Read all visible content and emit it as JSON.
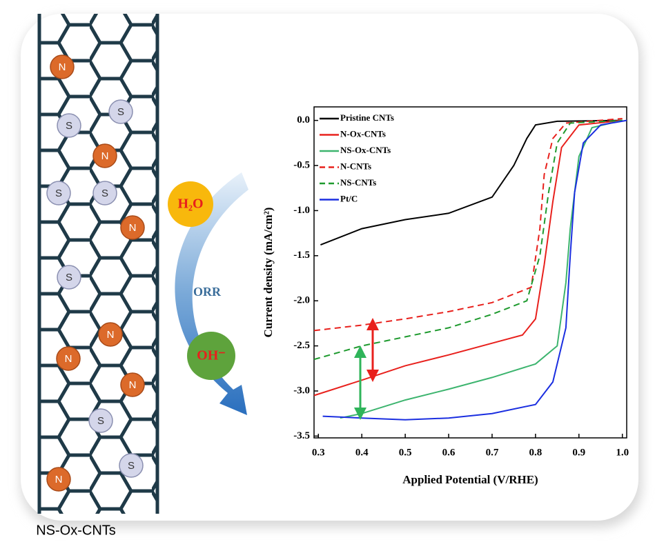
{
  "diagram": {
    "caption": "NS-Ox-CNTs",
    "atoms": [
      "N",
      "S",
      "S",
      "N",
      "S",
      "S",
      "N",
      "S",
      "N",
      "N",
      "N",
      "S",
      "S",
      "N"
    ],
    "reactant": "H₂O",
    "process": "ORR",
    "product": "OH⁻"
  },
  "chart_data": {
    "type": "line",
    "x_label": "Applied Potential (V/RHE)",
    "y_label": "Current density (mA/cm²)",
    "xlim": [
      0.29,
      1.01
    ],
    "ylim": [
      -3.52,
      0.15
    ],
    "xticks": [
      0.3,
      0.4,
      0.5,
      0.6,
      0.7,
      0.8,
      0.9,
      {
        "value": 1,
        "label": "1.0"
      }
    ],
    "yticks": [
      {
        "value": 0,
        "label": "0.0"
      },
      -0.5,
      {
        "value": -1,
        "label": "-1.0"
      },
      -1.5,
      {
        "value": -2,
        "label": "-2.0"
      },
      -2.5,
      {
        "value": -3,
        "label": "-3.0"
      },
      -3.5
    ],
    "legend": "upper left",
    "series": [
      {
        "name": "Pristine CNTs",
        "color": "#000000",
        "dashed": false,
        "x": [
          0.305,
          0.4,
          0.5,
          0.6,
          0.7,
          0.75,
          0.78,
          0.8,
          0.85,
          1.0
        ],
        "values": [
          -1.38,
          -1.2,
          -1.1,
          -1.03,
          -0.85,
          -0.5,
          -0.2,
          -0.05,
          -0.01,
          0
        ]
      },
      {
        "name": "N-Ox-CNTs",
        "color": "#e8201c",
        "dashed": false,
        "x": [
          0.29,
          0.4,
          0.5,
          0.6,
          0.7,
          0.77,
          0.8,
          0.82,
          0.84,
          0.86,
          0.9,
          1.0
        ],
        "values": [
          -3.05,
          -2.88,
          -2.72,
          -2.6,
          -2.47,
          -2.38,
          -2.2,
          -1.6,
          -0.9,
          -0.3,
          -0.05,
          0
        ]
      },
      {
        "name": "NS-Ox-CNTs",
        "color": "#3cb46e",
        "dashed": false,
        "x": [
          0.35,
          0.4,
          0.5,
          0.6,
          0.7,
          0.8,
          0.85,
          0.87,
          0.88,
          0.9,
          0.93,
          1.0
        ],
        "values": [
          -3.3,
          -3.25,
          -3.1,
          -2.98,
          -2.85,
          -2.7,
          -2.5,
          -1.8,
          -1.2,
          -0.4,
          -0.08,
          0
        ]
      },
      {
        "name": "N-CNTs",
        "color": "#e8201c",
        "dashed": true,
        "x": [
          0.29,
          0.4,
          0.5,
          0.6,
          0.7,
          0.79,
          0.81,
          0.82,
          0.84,
          0.87,
          1.0
        ],
        "values": [
          -2.33,
          -2.27,
          -2.2,
          -2.12,
          -2.02,
          -1.85,
          -1.2,
          -0.6,
          -0.2,
          -0.03,
          0.02
        ]
      },
      {
        "name": "NS-CNTs",
        "color": "#1e9a2e",
        "dashed": true,
        "x": [
          0.29,
          0.4,
          0.5,
          0.6,
          0.7,
          0.78,
          0.81,
          0.83,
          0.85,
          0.88,
          1.0
        ],
        "values": [
          -2.65,
          -2.5,
          -2.4,
          -2.3,
          -2.15,
          -2.0,
          -1.5,
          -0.8,
          -0.25,
          -0.03,
          0
        ]
      },
      {
        "name": "Pt/C",
        "color": "#1a2ee0",
        "dashed": false,
        "x": [
          0.31,
          0.4,
          0.5,
          0.6,
          0.7,
          0.8,
          0.84,
          0.87,
          0.88,
          0.89,
          0.91,
          0.95,
          1.01
        ],
        "values": [
          -3.28,
          -3.3,
          -3.32,
          -3.3,
          -3.25,
          -3.15,
          -2.9,
          -2.3,
          -1.5,
          -0.8,
          -0.25,
          -0.05,
          0
        ]
      }
    ]
  }
}
